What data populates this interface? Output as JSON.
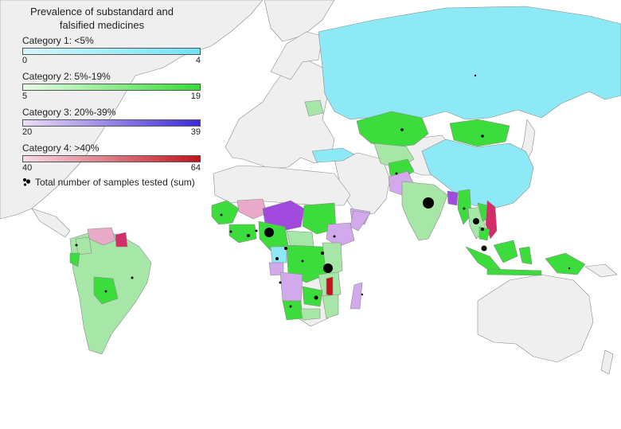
{
  "legend": {
    "title": "Prevalence of substandard and falsified medicines",
    "categories": [
      {
        "label": "Category 1: <5%",
        "min": "0",
        "max": "4",
        "color_from": "#d6f7fb",
        "color_to": "#6fe3f5"
      },
      {
        "label": "Category 2: 5%-19%",
        "min": "5",
        "max": "19",
        "color_from": "#e6fbe6",
        "color_to": "#35dd35"
      },
      {
        "label": "Category 3: 20%-39%",
        "min": "20",
        "max": "39",
        "color_from": "#eedcf8",
        "color_to": "#3b2ad6"
      },
      {
        "label": "Category 4: >40%",
        "min": "40",
        "max": "64",
        "color_from": "#f8dbe6",
        "color_to": "#c0141c"
      }
    ],
    "samples_label": "Total number of samples tested (sum)",
    "samples_icon": "black-dots-icon"
  },
  "colors": {
    "ocean": "#ffffff",
    "no_data": "#efefef",
    "border": "#8a8a8a",
    "cat1": "#8ee9f6",
    "cat2_light": "#a6e6a6",
    "cat2": "#3ddc3d",
    "cat3_light": "#d3a9ee",
    "cat3": "#a14bde",
    "cat4_light": "#e9a9c8",
    "cat4": "#d42e69",
    "cat4_dark": "#c0141c"
  }
}
